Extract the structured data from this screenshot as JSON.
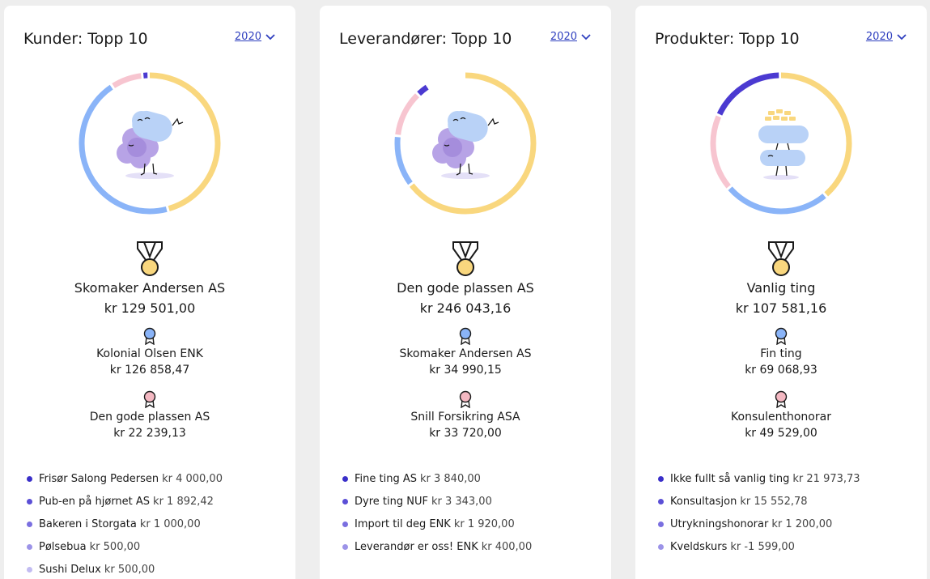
{
  "colors": {
    "gold": "#f9d77e",
    "blue": "#8ab4f8",
    "pink": "#f7c5d0",
    "purple": "#4b3ad1",
    "text": "#1a1a1a",
    "link": "#2f3fbf",
    "bullet_1": "#3a2fc9",
    "bullet_2": "#5b4fd6",
    "bullet_3": "#7a6fe0",
    "bullet_4": "#9c93e8",
    "bullet_5": "#c2bcf2"
  },
  "cards": [
    {
      "title": "Kunder: Topp 10",
      "year": "2020",
      "donut": [
        {
          "color": "gold",
          "fraction": 0.46
        },
        {
          "color": "blue",
          "fraction": 0.45
        },
        {
          "color": "pink",
          "fraction": 0.075
        },
        {
          "color": "purple",
          "fraction": 0.015
        }
      ],
      "illustration": "cloud-flower-character",
      "first": {
        "name": "Skomaker Andersen AS",
        "amount": "kr 129 501,00"
      },
      "second": {
        "name": "Kolonial Olsen ENK",
        "amount": "kr 126 858,47"
      },
      "third": {
        "name": "Den gode plassen AS",
        "amount": "kr 22 239,13"
      },
      "others": [
        {
          "name": "Frisør Salong Pedersen",
          "amount": "kr 4 000,00"
        },
        {
          "name": "Pub-en på hjørnet AS",
          "amount": "kr 1 892,42"
        },
        {
          "name": "Bakeren i Storgata",
          "amount": "kr 1 000,00"
        },
        {
          "name": "Pølsebua",
          "amount": "kr 500,00"
        },
        {
          "name": "Sushi Delux",
          "amount": "kr 500,00"
        }
      ]
    },
    {
      "title": "Leverandører: Topp 10",
      "year": "2020",
      "donut": [
        {
          "color": "gold",
          "fraction": 0.65
        },
        {
          "color": "blue",
          "fraction": 0.12
        },
        {
          "color": "pink",
          "fraction": 0.11
        },
        {
          "color": "purple",
          "fraction": 0.03
        }
      ],
      "illustration": "cloud-flower-character",
      "first": {
        "name": "Den gode plassen AS",
        "amount": "kr 246 043,16"
      },
      "second": {
        "name": "Skomaker Andersen AS",
        "amount": "kr 34 990,15"
      },
      "third": {
        "name": "Snill Forsikring ASA",
        "amount": "kr 33 720,00"
      },
      "others": [
        {
          "name": "Fine ting AS",
          "amount": "kr 3 840,00"
        },
        {
          "name": "Dyre ting NUF",
          "amount": "kr 3 343,00"
        },
        {
          "name": "Import til deg ENK",
          "amount": "kr 1 920,00"
        },
        {
          "name": "Leverandør er oss! ENK",
          "amount": "kr 400,00"
        }
      ]
    },
    {
      "title": "Produkter: Topp 10",
      "year": "2020",
      "donut": [
        {
          "color": "gold",
          "fraction": 0.39
        },
        {
          "color": "blue",
          "fraction": 0.25
        },
        {
          "color": "pink",
          "fraction": 0.18
        },
        {
          "color": "purple",
          "fraction": 0.18
        }
      ],
      "illustration": "stacked-clouds-character",
      "first": {
        "name": "Vanlig ting",
        "amount": "kr 107 581,16"
      },
      "second": {
        "name": "Fin ting",
        "amount": "kr 69 068,93"
      },
      "third": {
        "name": "Konsulenthonorar",
        "amount": "kr 49 529,00"
      },
      "others": [
        {
          "name": "Ikke fullt så vanlig ting",
          "amount": "kr 21 973,73"
        },
        {
          "name": "Konsultasjon",
          "amount": "kr 15 552,78"
        },
        {
          "name": "Utrykningshonorar",
          "amount": "kr 1 200,00"
        },
        {
          "name": "Kveldskurs",
          "amount": "kr -1 599,00"
        }
      ]
    }
  ]
}
